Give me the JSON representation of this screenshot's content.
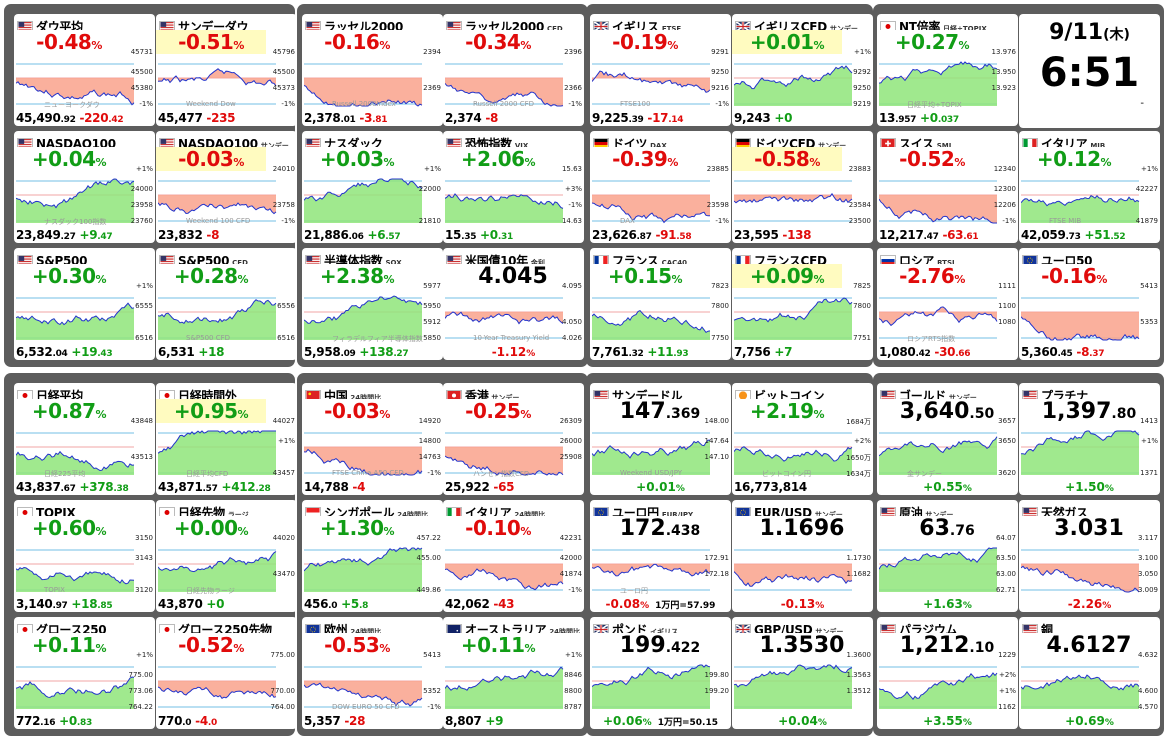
{
  "clock": {
    "date": "9/11",
    "weekday": "(木)",
    "time": "6:51",
    "dash": "-"
  },
  "colors": {
    "up": "#119d16",
    "down": "#e00b0b",
    "panel": "#5d5d5d",
    "highlight": "#fffbc0"
  },
  "tiles": [
    {
      "name": "ダウ平均",
      "flag": "us",
      "pct": "-0.48",
      "ft_main": "45,490",
      "ft_dec": ".92",
      "ft_chg": "-220",
      "ft_chgdec": ".42",
      "scale": [
        "45731",
        "45500",
        "45380",
        "-1%"
      ],
      "wm": "ニューヨークダウ"
    },
    {
      "name": "サンデーダウ",
      "flag": "us",
      "hl": true,
      "pct": "-0.51",
      "ft_main": "45,477",
      "ft_dec": "",
      "ft_chg": "-235",
      "ft_chgdec": "",
      "scale": [
        "45796",
        "45500",
        "45373",
        "-1%"
      ],
      "wm": "Weekend Dow"
    },
    {
      "name": "ラッセル2000",
      "flag": "us",
      "pct": "-0.16",
      "ft_main": "2,378",
      "ft_dec": ".01",
      "ft_chg": "-3",
      "ft_chgdec": ".81",
      "scale": [
        "2394",
        "",
        "2369",
        ""
      ],
      "wm": "Russell 2000Index"
    },
    {
      "name": "ラッセル2000",
      "sub": "CFD",
      "flag": "us",
      "pct": "-0.34",
      "ft_main": "2,374",
      "ft_dec": "",
      "ft_chg": "-8",
      "ft_chgdec": "",
      "scale": [
        "2396",
        "",
        "2366",
        "-1%"
      ],
      "wm": "Russell 2000 CFD"
    },
    {
      "name": "イギリス",
      "sub": "FTSE",
      "flag": "uk",
      "pct": "-0.19",
      "ft_main": "9,225",
      "ft_dec": ".39",
      "ft_chg": "-17",
      "ft_chgdec": ".14",
      "scale": [
        "9291",
        "9250",
        "9216",
        "-1%"
      ],
      "wm": "FTSE100"
    },
    {
      "name": "イギリスCFD",
      "sub": "サンデー",
      "flag": "uk",
      "pct": "+0.01",
      "hl": true,
      "ft_main": "9,243",
      "ft_dec": "",
      "ft_chg": "+0",
      "ft_chgdec": "",
      "scale": [
        "+1%",
        "9292",
        "9250",
        "9219"
      ],
      "wm": ""
    },
    {
      "name": "NT倍率",
      "sub": "日経÷TOPIX",
      "flag": "jp",
      "pct": "+0.27",
      "ft_main": "13",
      "ft_dec": ".957",
      "ft_chg": "+0",
      "ft_chgdec": ".037",
      "scale": [
        "13.976",
        "13.950",
        "13.923",
        ""
      ],
      "wm": "日経平均÷TOPIX"
    },
    {
      "name": "NASDAQ100",
      "flag": "us",
      "pct": "+0.04",
      "ft_main": "23,849",
      "ft_dec": ".27",
      "ft_chg": "+9",
      "ft_chgdec": ".47",
      "scale": [
        "+1%",
        "24000",
        "23958",
        "23760"
      ],
      "wm": "ナスダック100指数"
    },
    {
      "name": "NASDAQ100",
      "sub": "サンデー",
      "flag": "us",
      "hl": true,
      "pct": "-0.03",
      "ft_main": "23,832",
      "ft_dec": "",
      "ft_chg": "-8",
      "ft_chgdec": "",
      "scale": [
        "24010",
        "",
        "23758",
        "-1%"
      ],
      "wm": "Weekend 100 CFD"
    },
    {
      "name": "ナスダック",
      "flag": "us",
      "pct": "+0.03",
      "ft_main": "21,886",
      "ft_dec": ".06",
      "ft_chg": "+6",
      "ft_chgdec": ".57",
      "scale": [
        "+1%",
        "22000",
        "",
        "21810"
      ],
      "wm": ""
    },
    {
      "name": "恐怖指数",
      "sub": "VIX",
      "flag": "us",
      "pct": "+2.06",
      "ft_main": "15",
      "ft_dec": ".35",
      "ft_chg": "+0",
      "ft_chgdec": ".31",
      "scale": [
        "15.63",
        "+3%",
        "-1%",
        "14.63"
      ],
      "wm": ""
    },
    {
      "name": "ドイツ",
      "sub": "DAX",
      "flag": "de",
      "pct": "-0.39",
      "ft_main": "23,626",
      "ft_dec": ".87",
      "ft_chg": "-91",
      "ft_chgdec": ".58",
      "scale": [
        "23885",
        "",
        "23598",
        "-1%"
      ],
      "wm": "DAX"
    },
    {
      "name": "ドイツCFD",
      "sub": "サンデー",
      "flag": "de",
      "hl": true,
      "pct": "-0.58",
      "ft_main": "23,595",
      "ft_dec": "",
      "ft_chg": "-138",
      "ft_chgdec": "",
      "scale": [
        "23883",
        "",
        "23584",
        "23500"
      ],
      "wm": ""
    },
    {
      "name": "スイス",
      "sub": "SMI",
      "flag": "ch",
      "pct": "-0.52",
      "ft_main": "12,217",
      "ft_dec": ".47",
      "ft_chg": "-63",
      "ft_chgdec": ".61",
      "scale": [
        "12340",
        "12300",
        "12206",
        "-1%"
      ],
      "wm": ""
    },
    {
      "name": "イタリア",
      "sub": "MIB",
      "flag": "it",
      "pct": "+0.12",
      "ft_main": "42,059",
      "ft_dec": ".73",
      "ft_chg": "+51",
      "ft_chgdec": ".52",
      "scale": [
        "+1%",
        "42227",
        "",
        "41879"
      ],
      "wm": "FTSE MIB"
    },
    {
      "name": "S&P500",
      "flag": "us",
      "pct": "+0.30",
      "ft_main": "6,532",
      "ft_dec": ".04",
      "ft_chg": "+19",
      "ft_chgdec": ".43",
      "scale": [
        "+1%",
        "6555",
        "",
        "6516"
      ],
      "wm": ""
    },
    {
      "name": "S&P500",
      "sub": "CFD",
      "flag": "us",
      "pct": "+0.28",
      "ft_main": "6,531",
      "ft_dec": "",
      "ft_chg": "+18",
      "ft_chgdec": "",
      "scale": [
        "",
        "6556",
        "",
        "6516"
      ],
      "wm": "S&P500 CFD"
    },
    {
      "name": "半導体指数",
      "sub": "SOX",
      "flag": "us",
      "pct": "+2.38",
      "ft_main": "5,958",
      "ft_dec": ".09",
      "ft_chg": "+138",
      "ft_chgdec": ".27",
      "scale": [
        "5977",
        "5950",
        "5912",
        "5850"
      ],
      "wm": "フィラデルフィア半導体指数"
    },
    {
      "name": "米国債10年",
      "sub": "金利",
      "flag": "us",
      "big": true,
      "bigv": "4.045",
      "bigs": "",
      "pctb": "-1.12",
      "scale": [
        "4.095",
        "",
        "4.050",
        "4.026"
      ],
      "wm": "10-Year Treasury Yield"
    },
    {
      "name": "フランス",
      "sub": "CAC40",
      "flag": "fr",
      "pct": "+0.15",
      "ft_main": "7,761",
      "ft_dec": ".32",
      "ft_chg": "+11",
      "ft_chgdec": ".93",
      "scale": [
        "7823",
        "7800",
        "",
        "7750"
      ],
      "wm": ""
    },
    {
      "name": "フランスCFD",
      "flag": "fr",
      "hl": true,
      "pct": "+0.09",
      "ft_main": "7,756",
      "ft_dec": "",
      "ft_chg": "+7",
      "ft_chgdec": "",
      "scale": [
        "7825",
        "7800",
        "",
        "7751"
      ],
      "wm": ""
    },
    {
      "name": "ロシア",
      "sub": "RTSI",
      "flag": "ru",
      "pct": "-2.76",
      "ft_main": "1,080",
      "ft_dec": ".42",
      "ft_chg": "-30",
      "ft_chgdec": ".66",
      "scale": [
        "1111",
        "1100",
        "1080",
        ""
      ],
      "wm": "ロシアRTS指数"
    },
    {
      "name": "ユーロ50",
      "flag": "eu",
      "pct": "-0.16",
      "ft_main": "5,360",
      "ft_dec": ".45",
      "ft_chg": "-8",
      "ft_chgdec": ".37",
      "scale": [
        "5413",
        "",
        "5353",
        ""
      ],
      "wm": ""
    },
    {
      "name": "日経平均",
      "flag": "jp",
      "pct": "+0.87",
      "ft_main": "43,837",
      "ft_dec": ".67",
      "ft_chg": "+378",
      "ft_chgdec": ".38",
      "scale": [
        "43848",
        "",
        "43513",
        ""
      ],
      "wm": "日経225平均"
    },
    {
      "name": "日経時間外",
      "flag": "jp",
      "hl": true,
      "pct": "+0.95",
      "ft_main": "43,871",
      "ft_dec": ".57",
      "ft_chg": "+412",
      "ft_chgdec": ".28",
      "scale": [
        "44027",
        "+1%",
        "",
        "43457"
      ],
      "wm": "日経平均CFD"
    },
    {
      "name": "中国",
      "sub": "24時間比",
      "flag": "cn",
      "pct": "-0.03",
      "ft_main": "14,788",
      "ft_dec": "",
      "ft_chg": "-4",
      "ft_chgdec": "",
      "scale": [
        "14920",
        "14800",
        "14763",
        "-1%"
      ],
      "wm": "FTSE China A50 CFD"
    },
    {
      "name": "香港",
      "sub": "サンデー",
      "flag": "hk",
      "pct": "-0.25",
      "ft_main": "25,922",
      "ft_dec": "",
      "ft_chg": "-65",
      "ft_chgdec": "",
      "scale": [
        "26309",
        "26000",
        "25908",
        ""
      ],
      "wm": "ハンセン指数CFD"
    },
    {
      "name": "サンデードル",
      "flag": "us",
      "big": true,
      "bigv": "147",
      "bigs": ".369",
      "pctb": "+0.01",
      "scale": [
        "148.00",
        "147.64",
        "147.10",
        ""
      ],
      "wm": "Weekend USD/JPY"
    },
    {
      "name": "ビットコイン",
      "flag": "btc",
      "pct": "+2.19",
      "ft_main": "16,773,814",
      "ft_dec": "",
      "ft_chg": "",
      "ft_chgdec": "",
      "scale": [
        "1684万",
        "+2%",
        "1650万",
        "1634万"
      ],
      "wm": "ビットコイン円"
    },
    {
      "name": "ゴールド",
      "sub": "サンデー",
      "flag": "us",
      "big": true,
      "bigv": "3,640",
      "bigs": ".50",
      "pctb": "+0.55",
      "scale": [
        "3657",
        "3650",
        "",
        "3620"
      ],
      "wm": "金サンデー"
    },
    {
      "name": "プラチナ",
      "flag": "us",
      "big": true,
      "bigv": "1,397",
      "bigs": ".80",
      "pctb": "+1.50",
      "scale": [
        "1413",
        "+1%",
        "",
        "1371"
      ],
      "wm": ""
    },
    {
      "name": "TOPIX",
      "flag": "jp",
      "pct": "+0.60",
      "ft_main": "3,140",
      "ft_dec": ".97",
      "ft_chg": "+18",
      "ft_chgdec": ".85",
      "scale": [
        "3150",
        "3143",
        "",
        "3120"
      ],
      "wm": "TOPIX"
    },
    {
      "name": "日経先物",
      "sub": "ラージ",
      "flag": "jp",
      "pct": "+0.00",
      "ft_main": "43,870",
      "ft_dec": "",
      "ft_chg": "+0",
      "ft_chgdec": "",
      "scale": [
        "44020",
        "",
        "43470",
        ""
      ],
      "wm": "日経先物ラージ"
    },
    {
      "name": "シンガポール",
      "sub": "24時間比",
      "flag": "sg",
      "pct": "+1.30",
      "ft_main": "456",
      "ft_dec": ".0",
      "ft_chg": "+5",
      "ft_chgdec": ".8",
      "scale": [
        "457.22",
        "455.00",
        "",
        "449.86"
      ],
      "wm": ""
    },
    {
      "name": "イタリア",
      "sub": "24時間比",
      "flag": "it",
      "pct": "-0.10",
      "ft_main": "42,062",
      "ft_dec": "",
      "ft_chg": "-43",
      "ft_chgdec": "",
      "scale": [
        "42231",
        "42000",
        "41874",
        "-1%"
      ],
      "wm": ""
    },
    {
      "name": "ユーロ円",
      "sub": "EUR/JPY",
      "flag": "eu",
      "big": true,
      "bigv": "172",
      "bigs": ".438",
      "pctb": "-0.08",
      "pctx": "1万円=57.99",
      "scale": [
        "",
        "172.91",
        "172.18",
        ""
      ],
      "wm": "ユーロ円"
    },
    {
      "name": "EUR/USD",
      "sub": "サンデー",
      "flag": "eu",
      "big": true,
      "bigv": "1.1696",
      "bigs": "",
      "pctb": "-0.13",
      "scale": [
        "",
        "1.1730",
        "1.1682",
        ""
      ],
      "wm": ""
    },
    {
      "name": "原油",
      "sub": "サンデー",
      "flag": "us",
      "big": true,
      "bigv": "63",
      "bigs": ".76",
      "pctb": "+1.63",
      "scale": [
        "64.07",
        "63.50",
        "63.00",
        "62.71"
      ],
      "wm": ""
    },
    {
      "name": "天然ガス",
      "flag": "us",
      "big": true,
      "bigv": "3.031",
      "bigs": "",
      "pctb": "-2.26",
      "scale": [
        "3.117",
        "3.100",
        "3.050",
        "3.009"
      ],
      "wm": ""
    },
    {
      "name": "グロース250",
      "flag": "jp",
      "pct": "+0.11",
      "ft_main": "772",
      "ft_dec": ".16",
      "ft_chg": "+0",
      "ft_chgdec": ".83",
      "scale": [
        "+1%",
        "775.00",
        "773.06",
        "764.22"
      ],
      "wm": ""
    },
    {
      "name": "グロース250先物",
      "flag": "jp",
      "pct": "-0.52",
      "ft_main": "770",
      "ft_dec": ".0",
      "ft_chg": "-4",
      "ft_chgdec": ".0",
      "scale": [
        "775.00",
        "",
        "770.00",
        "764.00"
      ],
      "wm": ""
    },
    {
      "name": "欧州",
      "sub": "24時間比",
      "flag": "eu",
      "pct": "-0.53",
      "ft_main": "5,357",
      "ft_dec": "",
      "ft_chg": "-28",
      "ft_chgdec": "",
      "scale": [
        "5413",
        "",
        "5352",
        "-1%"
      ],
      "wm": "DOW EURO 50 CFD"
    },
    {
      "name": "オーストラリア",
      "sub": "24時間比",
      "flag": "au",
      "pct": "+0.11",
      "ft_main": "8,807",
      "ft_dec": "",
      "ft_chg": "+9",
      "ft_chgdec": "",
      "scale": [
        "+1%",
        "8846",
        "8800",
        "8787"
      ],
      "wm": ""
    },
    {
      "name": "ポンド",
      "sub": "イギリス",
      "flag": "uk",
      "big": true,
      "bigv": "199",
      "bigs": ".422",
      "pctb": "+0.06",
      "pctx": "1万円=50.15",
      "scale": [
        "",
        "199.80",
        "199.20",
        ""
      ],
      "wm": ""
    },
    {
      "name": "GBP/USD",
      "sub": "サンデー",
      "flag": "uk",
      "big": true,
      "bigv": "1.3530",
      "bigs": "",
      "pctb": "+0.04",
      "scale": [
        "1.3600",
        "1.3563",
        "1.3512",
        ""
      ],
      "wm": ""
    },
    {
      "name": "パラジウム",
      "flag": "us",
      "big": true,
      "bigv": "1,212",
      "bigs": ".10",
      "pctb": "+3.55",
      "scale": [
        "1229",
        "+2%",
        "+1%",
        "1162"
      ],
      "wm": ""
    },
    {
      "name": "銅",
      "flag": "us",
      "big": true,
      "bigv": "4.6127",
      "bigs": "",
      "pctb": "+0.69",
      "scale": [
        "4.632",
        "",
        "4.600",
        "4.570"
      ],
      "wm": ""
    }
  ]
}
